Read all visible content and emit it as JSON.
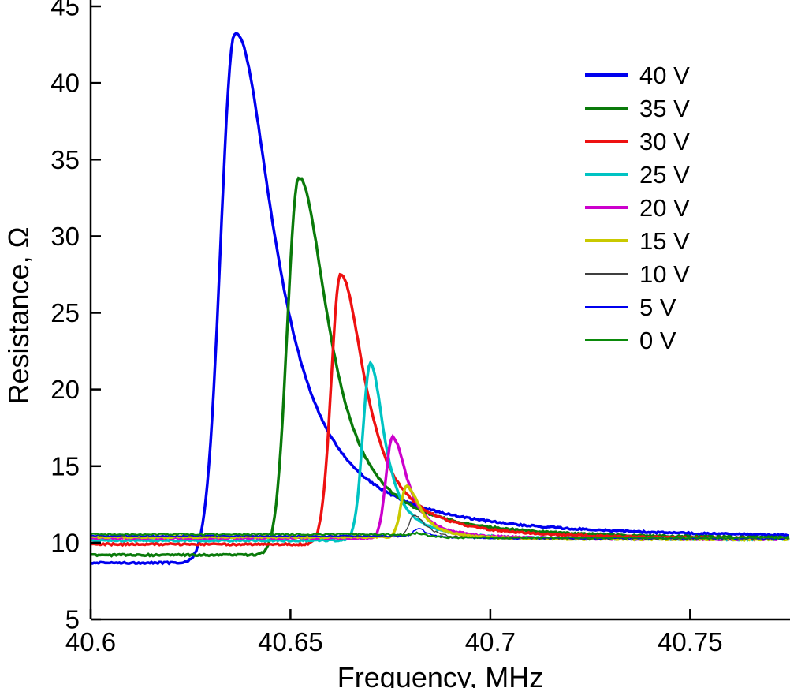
{
  "chart_data": {
    "type": "line",
    "title": "",
    "xlabel": "Frequency, MHz",
    "ylabel": "Resistance, Ω",
    "xlim": [
      40.6,
      40.775
    ],
    "ylim": [
      5,
      45
    ],
    "xticks": [
      40.6,
      40.65,
      40.7,
      40.75
    ],
    "xtick_labels": [
      "40.6",
      "40.65",
      "40.7",
      "40.75"
    ],
    "yticks": [
      5,
      10,
      15,
      20,
      25,
      30,
      35,
      40,
      45
    ],
    "ytick_labels": [
      "5",
      "10",
      "15",
      "20",
      "25",
      "30",
      "35",
      "40",
      "45"
    ],
    "grid": false,
    "legend_position": "upper right",
    "axis_color": "#000000",
    "background_color": "#ffffff",
    "series": [
      {
        "name": "40 V",
        "color": "#0000ee",
        "line_width": 3.5,
        "peak_freq_mhz": 40.636,
        "peak_resistance_ohm": 43.2,
        "baseline_left_ohm": 8.7,
        "baseline_right_ohm": 10.25,
        "rise_sigma_mhz": 0.0035,
        "fall_halfwidth_mhz": 0.012
      },
      {
        "name": "35 V",
        "color": "#0a7a0a",
        "line_width": 3.5,
        "peak_freq_mhz": 40.652,
        "peak_resistance_ohm": 33.8,
        "baseline_left_ohm": 9.2,
        "baseline_right_ohm": 10.2,
        "rise_sigma_mhz": 0.0028,
        "fall_halfwidth_mhz": 0.009
      },
      {
        "name": "30 V",
        "color": "#ee1111",
        "line_width": 3.5,
        "peak_freq_mhz": 40.6625,
        "peak_resistance_ohm": 27.5,
        "baseline_left_ohm": 9.9,
        "baseline_right_ohm": 10.2,
        "rise_sigma_mhz": 0.0023,
        "fall_halfwidth_mhz": 0.0075
      },
      {
        "name": "25 V",
        "color": "#00c3c3",
        "line_width": 3.5,
        "peak_freq_mhz": 40.67,
        "peak_resistance_ohm": 21.7,
        "baseline_left_ohm": 10.15,
        "baseline_right_ohm": 10.2,
        "rise_sigma_mhz": 0.0019,
        "fall_halfwidth_mhz": 0.0042
      },
      {
        "name": "20 V",
        "color": "#cc00cc",
        "line_width": 3.5,
        "peak_freq_mhz": 40.6755,
        "peak_resistance_ohm": 16.9,
        "baseline_left_ohm": 10.3,
        "baseline_right_ohm": 10.22,
        "rise_sigma_mhz": 0.0016,
        "fall_halfwidth_mhz": 0.0045
      },
      {
        "name": "15 V",
        "color": "#c9c900",
        "line_width": 3.5,
        "peak_freq_mhz": 40.679,
        "peak_resistance_ohm": 13.7,
        "baseline_left_ohm": 10.38,
        "baseline_right_ohm": 10.22,
        "rise_sigma_mhz": 0.0014,
        "fall_halfwidth_mhz": 0.0042
      },
      {
        "name": "10 V",
        "color": "#3f3f3f",
        "line_width": 1.3,
        "peak_freq_mhz": 40.681,
        "peak_resistance_ohm": 11.8,
        "baseline_left_ohm": 10.42,
        "baseline_right_ohm": 10.25,
        "rise_sigma_mhz": 0.0013,
        "fall_halfwidth_mhz": 0.0035
      },
      {
        "name": "5 V",
        "color": "#0000ee",
        "line_width": 1.5,
        "peak_freq_mhz": 40.682,
        "peak_resistance_ohm": 10.9,
        "baseline_left_ohm": 10.45,
        "baseline_right_ohm": 10.28,
        "rise_sigma_mhz": 0.0012,
        "fall_halfwidth_mhz": 0.003
      },
      {
        "name": "0 V",
        "color": "#0b8a0b",
        "line_width": 2.2,
        "peak_freq_mhz": 40.682,
        "peak_resistance_ohm": 10.62,
        "baseline_left_ohm": 10.55,
        "baseline_right_ohm": 10.32,
        "rise_sigma_mhz": 0.0012,
        "fall_halfwidth_mhz": 0.003
      }
    ]
  }
}
